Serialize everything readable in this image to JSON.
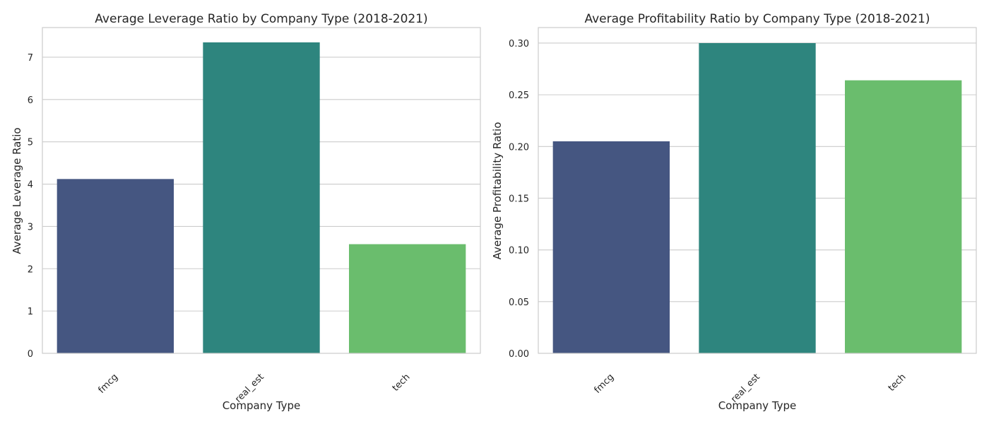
{
  "chart_data": [
    {
      "type": "bar",
      "title": "Average Leverage Ratio by Company Type (2018-2021)",
      "xlabel": "Company Type",
      "ylabel": "Average Leverage Ratio",
      "categories": [
        "fmcg",
        "real_est",
        "tech"
      ],
      "values": [
        4.12,
        7.35,
        2.58
      ],
      "colors": [
        "#455681",
        "#2e857e",
        "#6abd6d"
      ],
      "ylim": [
        0,
        7.7
      ],
      "yticks": [
        0,
        1,
        2,
        3,
        4,
        5,
        6,
        7
      ],
      "ytick_labels": [
        "0",
        "1",
        "2",
        "3",
        "4",
        "5",
        "6",
        "7"
      ],
      "grid": "horizontal",
      "legend": "none"
    },
    {
      "type": "bar",
      "title": "Average Profitability Ratio by Company Type (2018-2021)",
      "xlabel": "Company Type",
      "ylabel": "Average Profitability Ratio",
      "categories": [
        "fmcg",
        "real_est",
        "tech"
      ],
      "values": [
        0.205,
        0.3,
        0.264
      ],
      "colors": [
        "#455681",
        "#2e857e",
        "#6abd6d"
      ],
      "ylim": [
        0,
        0.315
      ],
      "yticks": [
        0,
        0.05,
        0.1,
        0.15,
        0.2,
        0.25,
        0.3
      ],
      "ytick_labels": [
        "0.00",
        "0.05",
        "0.10",
        "0.15",
        "0.20",
        "0.25",
        "0.30"
      ],
      "grid": "horizontal",
      "legend": "none"
    }
  ]
}
